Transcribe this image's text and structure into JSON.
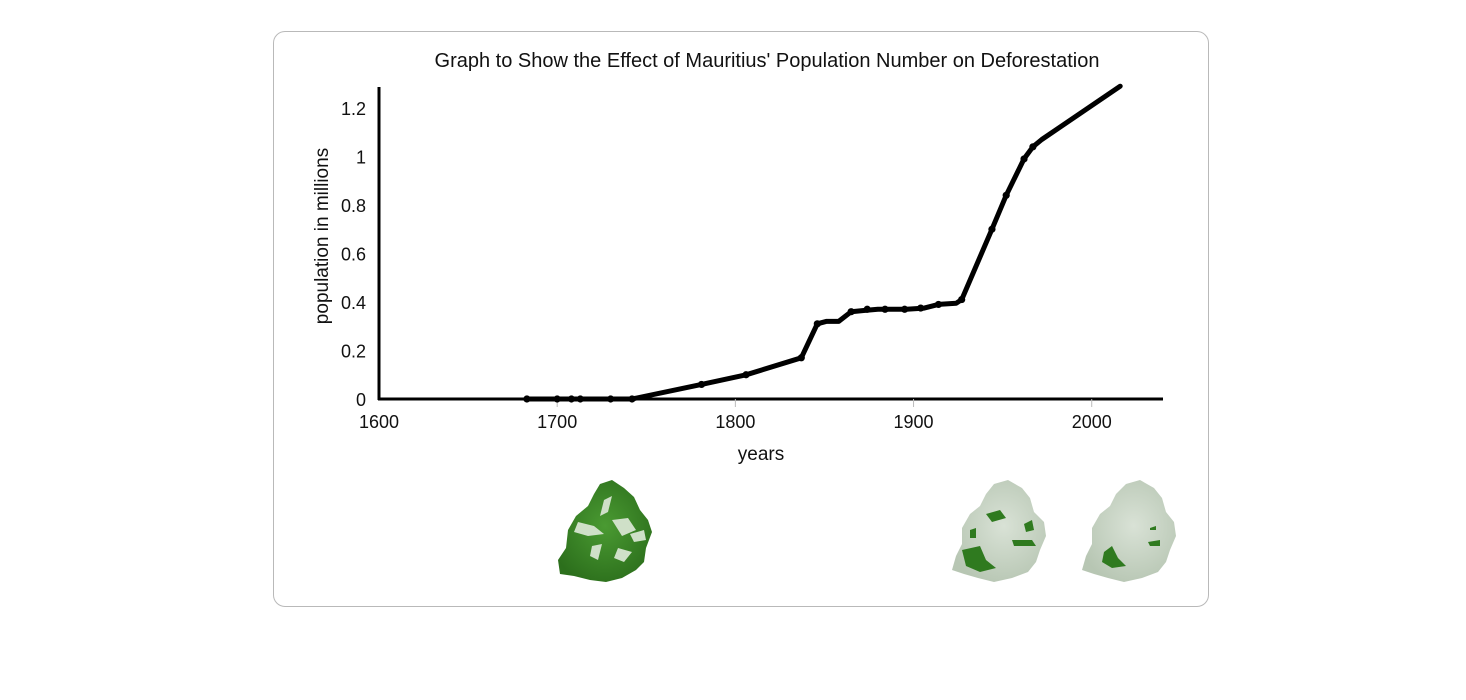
{
  "chart_data": {
    "type": "line",
    "title": "Graph to Show the Effect of Mauritius' Population Number on Deforestation",
    "xlabel": "years",
    "ylabel": "population in millions",
    "xlim": [
      1600,
      2040
    ],
    "ylim": [
      0,
      1.3
    ],
    "x_ticks": [
      "1600",
      "1700",
      "1800",
      "1900",
      "2000"
    ],
    "y_ticks": [
      "0",
      "0.2",
      "0.4",
      "0.6",
      "0.8",
      "1",
      "1.2"
    ],
    "grid": false,
    "legend": "none",
    "series": [
      {
        "color": "#000000",
        "x": [
          1683,
          1700,
          1708,
          1713,
          1730,
          1742,
          1781,
          1806,
          1837,
          1846,
          1851,
          1858,
          1865,
          1872,
          1880,
          1886,
          1896,
          1906,
          1914,
          1924,
          1927,
          1944,
          1952,
          1962,
          1967,
          1972,
          2016
        ],
        "y": [
          0.0,
          0.0,
          0.0,
          0.0,
          0.0,
          0.0,
          0.06,
          0.1,
          0.17,
          0.31,
          0.32,
          0.32,
          0.36,
          0.365,
          0.37,
          0.37,
          0.37,
          0.375,
          0.39,
          0.395,
          0.41,
          0.7,
          0.84,
          0.99,
          1.04,
          1.07,
          1.29
        ]
      }
    ],
    "markers": [
      {
        "x": 1683,
        "y": 0.0
      },
      {
        "x": 1700,
        "y": 0.0
      },
      {
        "x": 1708,
        "y": 0.0
      },
      {
        "x": 1713,
        "y": 0.0
      },
      {
        "x": 1730,
        "y": 0.0
      },
      {
        "x": 1742,
        "y": 0.0
      },
      {
        "x": 1781,
        "y": 0.06
      },
      {
        "x": 1806,
        "y": 0.1
      },
      {
        "x": 1837,
        "y": 0.17
      },
      {
        "x": 1846,
        "y": 0.31
      },
      {
        "x": 1865,
        "y": 0.36
      },
      {
        "x": 1874,
        "y": 0.37
      },
      {
        "x": 1884,
        "y": 0.37
      },
      {
        "x": 1895,
        "y": 0.37
      },
      {
        "x": 1904,
        "y": 0.375
      },
      {
        "x": 1914,
        "y": 0.39
      },
      {
        "x": 1927,
        "y": 0.41
      },
      {
        "x": 1944,
        "y": 0.7
      },
      {
        "x": 1952,
        "y": 0.84
      },
      {
        "x": 1962,
        "y": 0.99
      },
      {
        "x": 1967,
        "y": 1.04
      }
    ]
  },
  "island_maps": [
    {
      "name": "forest-1600s",
      "land_color": "#3e8a2c",
      "forest_color": "#2f7a1f"
    },
    {
      "name": "forest-1900s",
      "land_color": "#c4d1c1",
      "forest_color": "#2f7a1f"
    },
    {
      "name": "forest-1990s",
      "land_color": "#c4d1c1",
      "forest_color": "#2f7a1f"
    }
  ]
}
